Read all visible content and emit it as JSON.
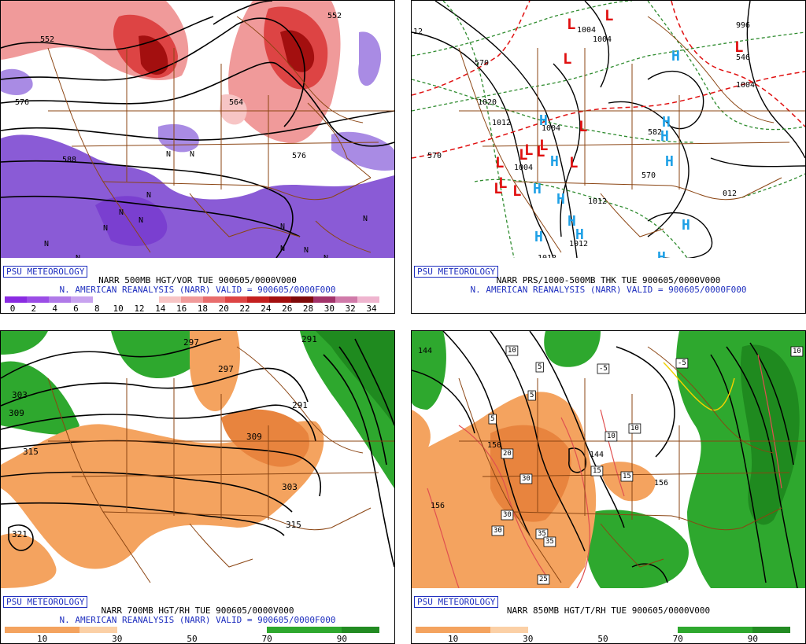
{
  "badge": "PSU METEOROLOGY",
  "panels": [
    {
      "id": "p1",
      "title_line1": "NARR 500MB HGT/VOR TUE 900605/0000V000",
      "title_line2": "N. AMERICAN REANALYSIS (NARR) VALID = 900605/0000F000",
      "colorbar_colors": [
        "#8a2be2",
        "#9b4de6",
        "#b07ae8",
        "#c8a3ef",
        "#ffffff",
        "#ffffff",
        "#ffffff",
        "#f7c5c5",
        "#f09a9a",
        "#e86d6d",
        "#dd4444",
        "#c41f1f",
        "#a30f0f",
        "#7f0a0a",
        "#a2336a",
        "#d07aa9",
        "#efb5cf"
      ],
      "colorbar_ticks": [
        "0",
        "2",
        "4",
        "6",
        "8",
        "10",
        "12",
        "14",
        "16",
        "18",
        "20",
        "22",
        "24",
        "26",
        "28",
        "30",
        "32",
        "34"
      ],
      "contour_labels": [
        "552",
        "576",
        "588",
        "588",
        "588",
        "552",
        "564",
        "576"
      ],
      "center_marks": [
        "N",
        "N",
        "N",
        "N",
        "N",
        "N",
        "N",
        "N",
        "N",
        "N",
        "N",
        "N",
        "N"
      ]
    },
    {
      "id": "p2",
      "title_line1": "NARR PRS/1000-500MB THK TUE 900605/0000V000",
      "title_line2": "N. AMERICAN REANALYSIS (NARR) VALID = 900605/0000F000",
      "contour_labels": [
        "1004",
        "1004",
        "1012",
        "1012",
        "1012",
        "1004",
        "570",
        "570",
        "1004",
        "012",
        "996",
        "1020",
        "1012",
        "1004",
        "546",
        "12",
        "582",
        "570"
      ],
      "low_marks": [
        "L",
        "L",
        "L",
        "L",
        "L",
        "L",
        "L",
        "L",
        "L",
        "L",
        "L",
        "L",
        "L",
        "L"
      ],
      "high_marks": [
        "H",
        "H",
        "H",
        "H",
        "H",
        "H",
        "H",
        "H",
        "H",
        "H",
        "H",
        "H",
        "H",
        "H",
        "H"
      ]
    },
    {
      "id": "p3",
      "title_line1": "NARR 700MB HGT/RH TUE 900605/0000V000",
      "title_line2": "N. AMERICAN REANALYSIS (NARR) VALID = 900605/0000F000",
      "colorbar_colors": [
        "#f4a35f",
        "#f4a35f",
        "#fbd0a6",
        "#ffffff",
        "#ffffff",
        "#ffffff",
        "#ffffff",
        "#2ea82e",
        "#2ea82e",
        "#228b22"
      ],
      "colorbar_ticks": [
        "10",
        "30",
        "50",
        "70",
        "90"
      ],
      "contour_labels": [
        "303",
        "309",
        "315",
        "321",
        "297",
        "291",
        "309",
        "303",
        "315",
        "291",
        "297"
      ]
    },
    {
      "id": "p4",
      "title_line1": "NARR 850MB HGT/T/RH TUE 900605/0000V000",
      "title_line2": "",
      "colorbar_colors": [
        "#f4a35f",
        "#f4a35f",
        "#fbd0a6",
        "#ffffff",
        "#ffffff",
        "#ffffff",
        "#ffffff",
        "#2ea82e",
        "#2ea82e",
        "#228b22"
      ],
      "colorbar_ticks": [
        "10",
        "30",
        "50",
        "70",
        "90"
      ],
      "contour_labels": [
        "144",
        "156",
        "156",
        "156",
        "150",
        "144"
      ],
      "boxed_labels": [
        "5",
        "5",
        "-5",
        "5",
        "-5",
        "10",
        "10",
        "10",
        "20",
        "30",
        "30",
        "15",
        "15",
        "30",
        "35",
        "35",
        "25",
        "10"
      ]
    }
  ]
}
